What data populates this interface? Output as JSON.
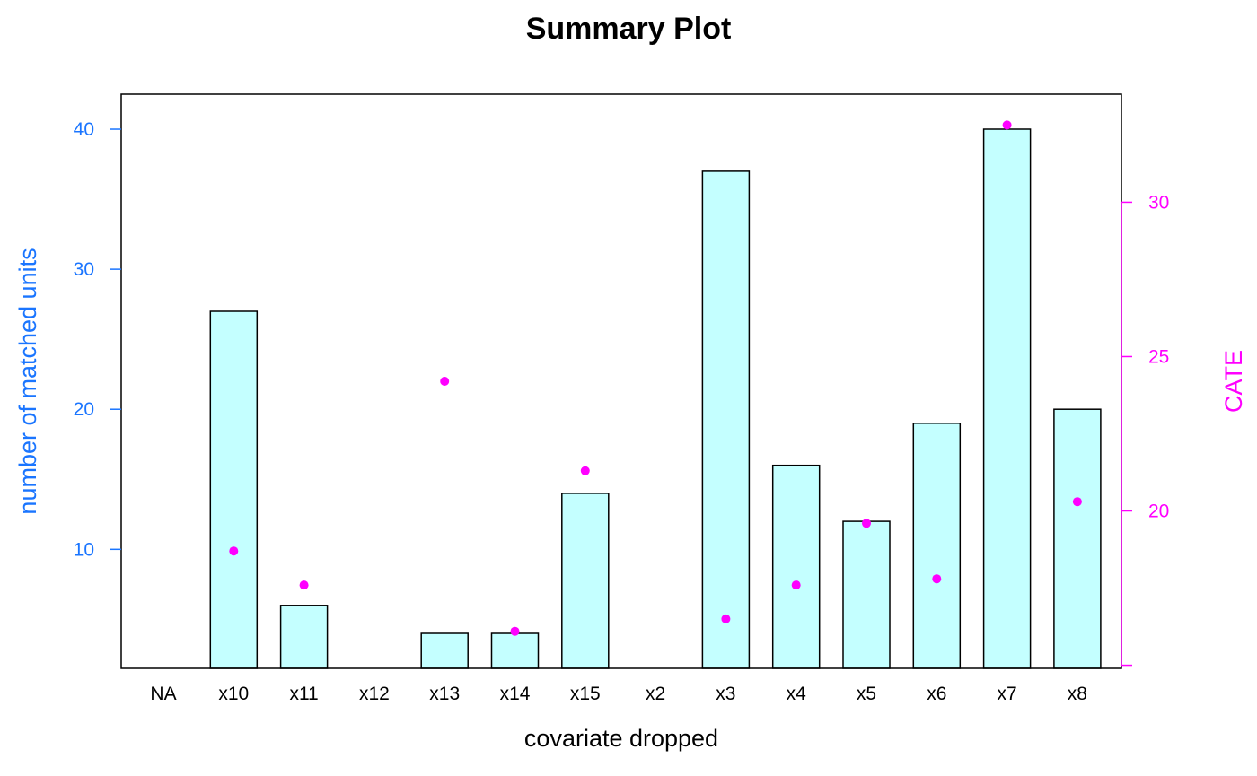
{
  "chart_data": {
    "type": "bar",
    "title": "Summary Plot",
    "xlabel": "covariate dropped",
    "ylabel_left": "number of matched units",
    "ylabel_right": "CATE",
    "categories": [
      "NA",
      "x10",
      "x11",
      "x12",
      "x13",
      "x14",
      "x15",
      "x2",
      "x3",
      "x4",
      "x5",
      "x6",
      "x7",
      "x8"
    ],
    "series": [
      {
        "type": "bar",
        "axis": "left",
        "values": [
          null,
          27,
          6,
          null,
          4,
          4,
          14,
          null,
          37,
          16,
          12,
          19,
          40,
          20
        ]
      },
      {
        "type": "scatter",
        "axis": "right",
        "values": [
          null,
          18.7,
          17.6,
          null,
          24.2,
          16.1,
          21.3,
          null,
          16.5,
          17.6,
          19.6,
          17.8,
          32.5,
          20.3
        ]
      }
    ],
    "left_axis": {
      "ylim": [
        1.5,
        42.5
      ],
      "ticks": [
        10,
        20,
        30,
        40
      ],
      "color": "#1a75ff"
    },
    "right_axis": {
      "ylim": [
        14.9,
        33.5
      ],
      "ticks": [
        20,
        25,
        30
      ],
      "color": "#ff00ff"
    },
    "bar_fill": "#c4ffff",
    "bar_stroke": "#000000",
    "point_color": "#ff00ff",
    "grid": false,
    "legend": "none"
  }
}
